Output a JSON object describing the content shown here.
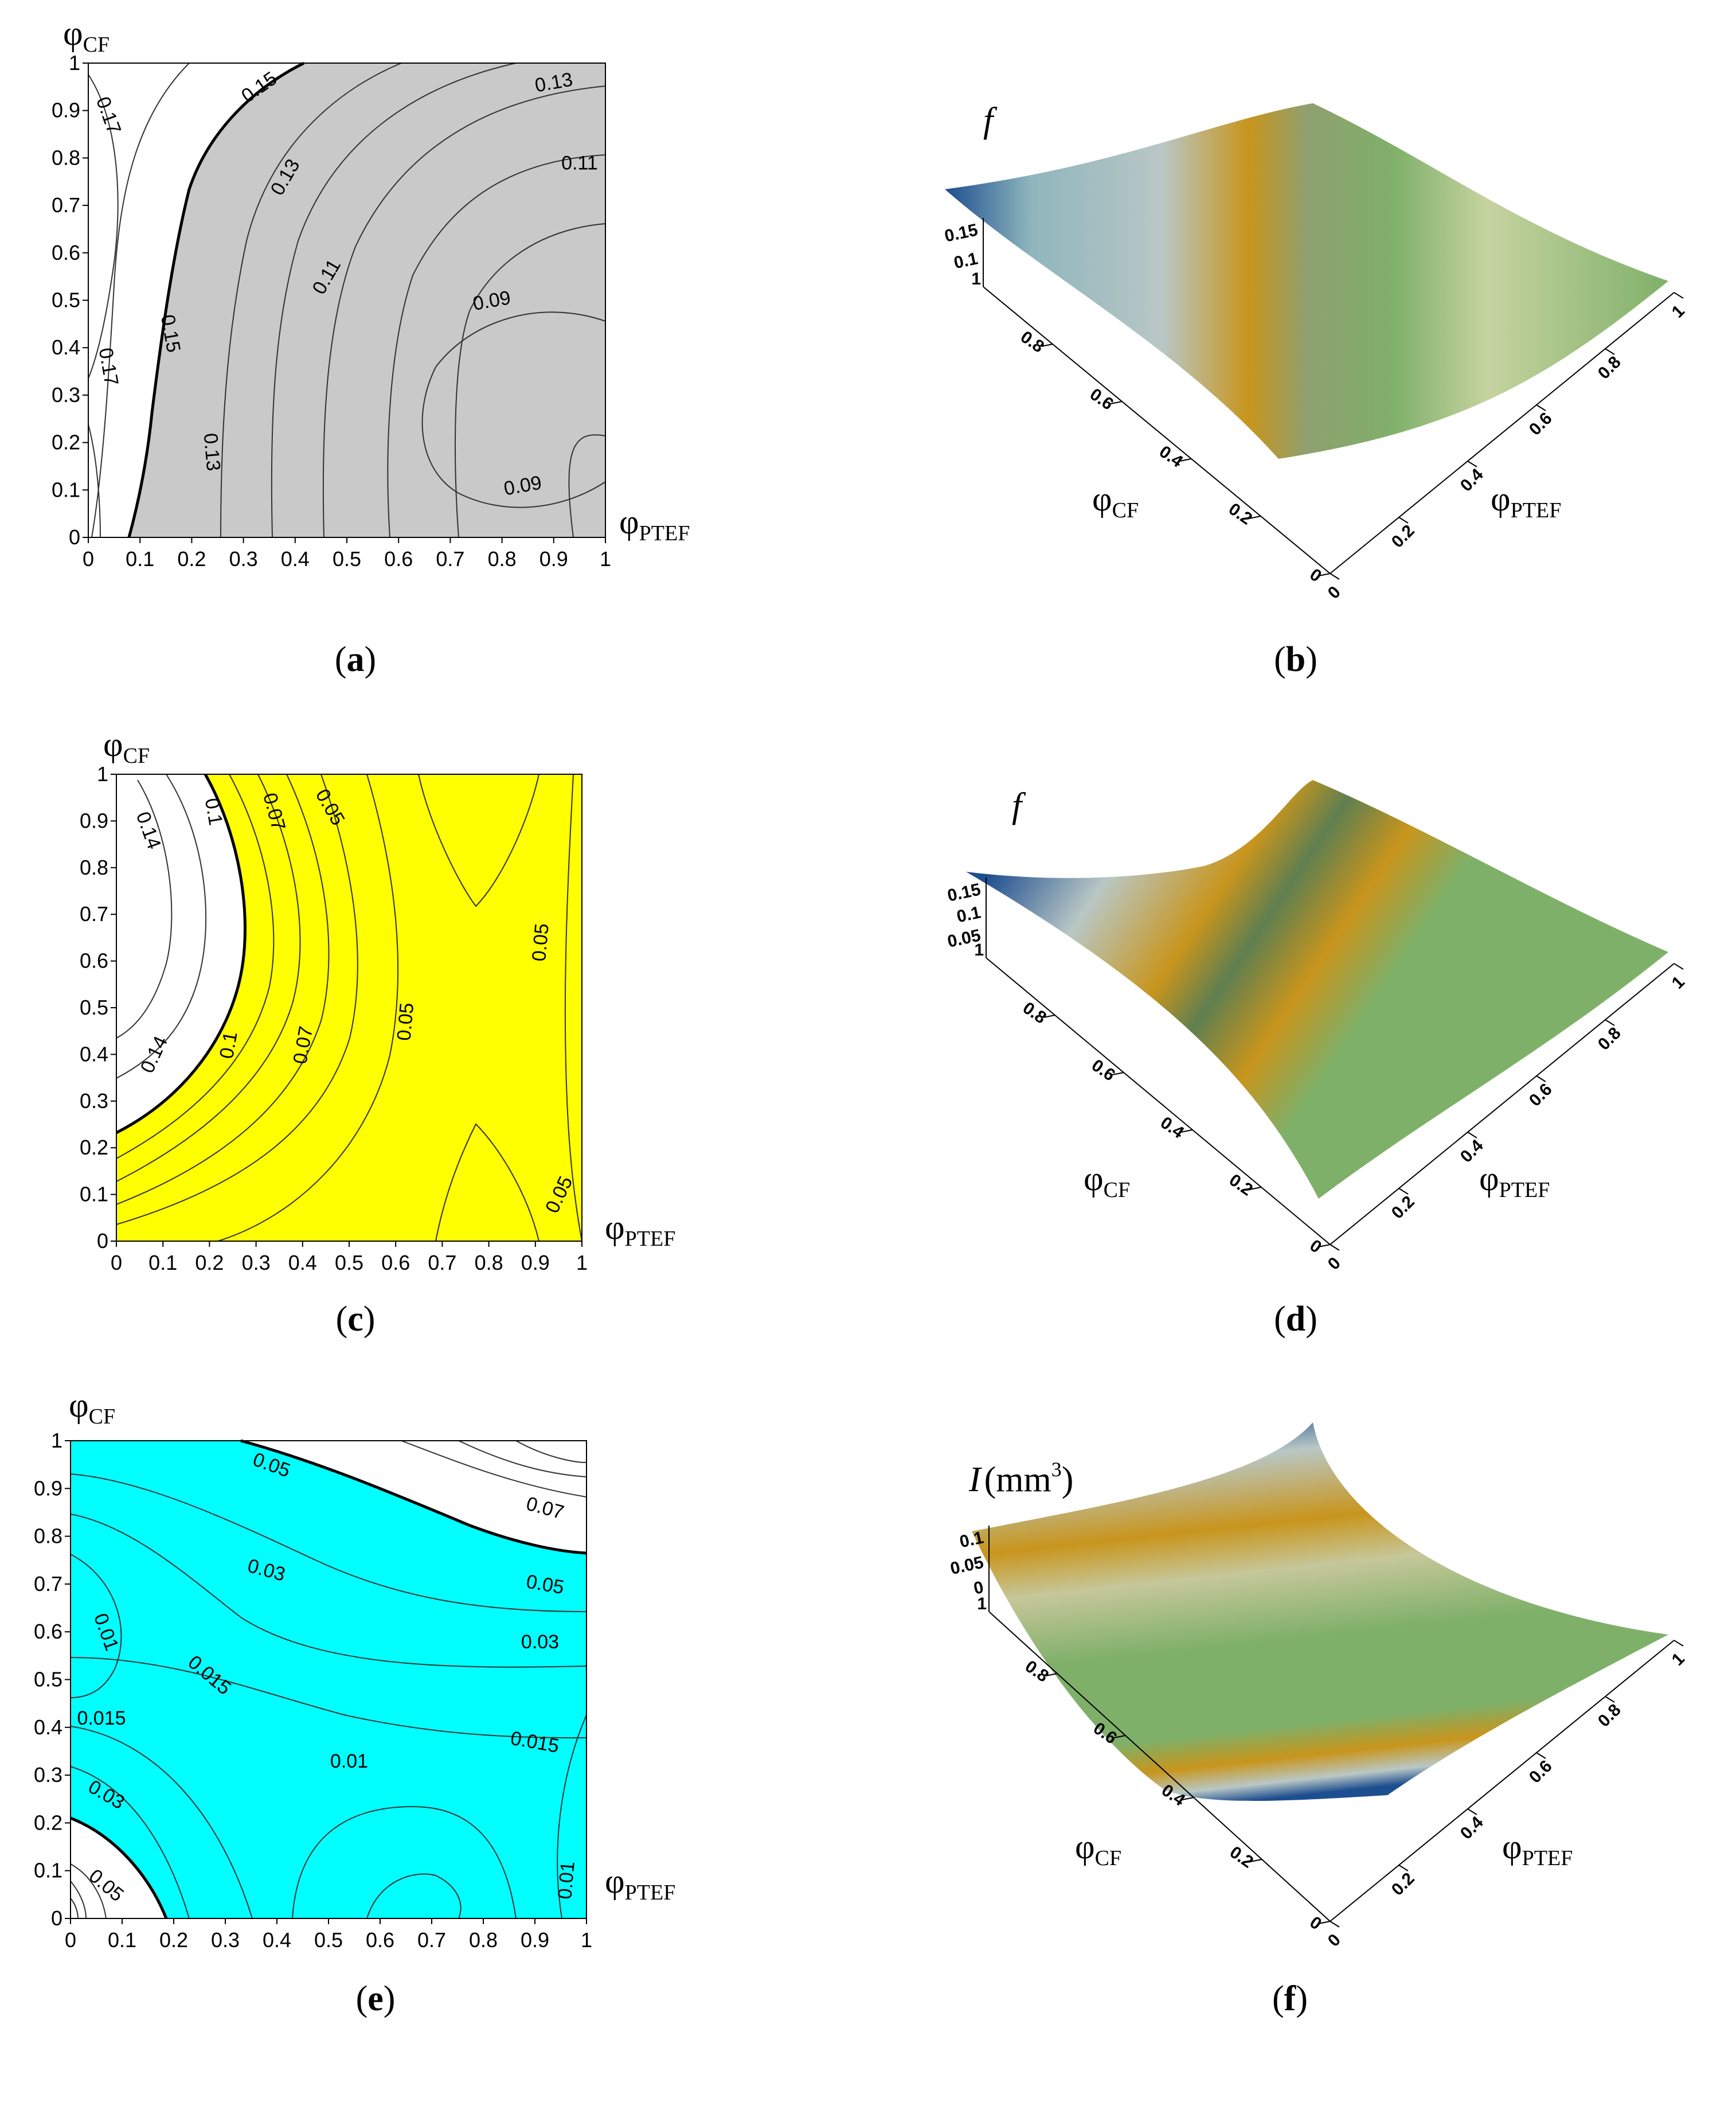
{
  "chart_data": [
    {
      "panel": "a",
      "type": "contour",
      "caption_label": "a",
      "xlabel": "φ",
      "xlabel_sub": "PTEF",
      "ylabel": "φ",
      "ylabel_sub": "CF",
      "xlim": [
        0,
        1
      ],
      "ylim": [
        0,
        1
      ],
      "xticks": [
        "0",
        "0.1",
        "0.2",
        "0.3",
        "0.4",
        "0.5",
        "0.6",
        "0.7",
        "0.8",
        "0.9",
        "1"
      ],
      "yticks": [
        "0",
        "0.1",
        "0.2",
        "0.3",
        "0.4",
        "0.5",
        "0.6",
        "0.7",
        "0.8",
        "0.9",
        "1"
      ],
      "fill_color": "#c9c9c9",
      "contour_labels": [
        {
          "text": "0.17",
          "x": 0.04,
          "y": 0.89,
          "rot": 70
        },
        {
          "text": "0.15",
          "x": 0.33,
          "y": 0.95,
          "rot": -35
        },
        {
          "text": "0.13",
          "x": 0.9,
          "y": 0.96,
          "rot": -10
        },
        {
          "text": "0.11",
          "x": 0.95,
          "y": 0.79,
          "rot": 0
        },
        {
          "text": "0.13",
          "x": 0.38,
          "y": 0.76,
          "rot": -60
        },
        {
          "text": "0.11",
          "x": 0.46,
          "y": 0.55,
          "rot": -60
        },
        {
          "text": "0.09",
          "x": 0.78,
          "y": 0.5,
          "rot": -10
        },
        {
          "text": "0.17",
          "x": 0.04,
          "y": 0.36,
          "rot": 80
        },
        {
          "text": "0.15",
          "x": 0.16,
          "y": 0.43,
          "rot": 80
        },
        {
          "text": "0.13",
          "x": 0.24,
          "y": 0.18,
          "rot": 85
        },
        {
          "text": "0.09",
          "x": 0.84,
          "y": 0.11,
          "rot": -10
        }
      ]
    },
    {
      "panel": "b",
      "type": "surface3d",
      "caption_label": "b",
      "zlabel": "f",
      "xlabel": "φ",
      "xlabel_sub": "PTEF",
      "ylabel": "φ",
      "ylabel_sub": "CF",
      "zticks": [
        "0.15",
        "0.1"
      ],
      "yticks": [
        "0.8",
        "0.6",
        "0.4",
        "0.2",
        "0"
      ],
      "xticks": [
        "0",
        "0.2",
        "0.4",
        "0.6",
        "0.8",
        "1"
      ],
      "corner_y_tick": "1"
    },
    {
      "panel": "c",
      "type": "contour",
      "caption_label": "c",
      "xlabel": "φ",
      "xlabel_sub": "PTEF",
      "ylabel": "φ",
      "ylabel_sub": "CF",
      "xlim": [
        0,
        1
      ],
      "ylim": [
        0,
        1
      ],
      "xticks": [
        "0",
        "0.1",
        "0.2",
        "0.3",
        "0.4",
        "0.5",
        "0.6",
        "0.7",
        "0.8",
        "0.9",
        "1"
      ],
      "yticks": [
        "0",
        "0.1",
        "0.2",
        "0.3",
        "0.4",
        "0.5",
        "0.6",
        "0.7",
        "0.8",
        "0.9",
        "1"
      ],
      "fill_color": "#ffff00",
      "contour_labels": [
        {
          "text": "0.14",
          "x": 0.07,
          "y": 0.88,
          "rot": 70
        },
        {
          "text": "0.1",
          "x": 0.21,
          "y": 0.92,
          "rot": 80
        },
        {
          "text": "0.07",
          "x": 0.34,
          "y": 0.92,
          "rot": 75
        },
        {
          "text": "0.05",
          "x": 0.46,
          "y": 0.93,
          "rot": 60
        },
        {
          "text": "0.05",
          "x": 0.91,
          "y": 0.64,
          "rot": -85
        },
        {
          "text": "0.14",
          "x": 0.08,
          "y": 0.4,
          "rot": -65
        },
        {
          "text": "0.1",
          "x": 0.24,
          "y": 0.42,
          "rot": -80
        },
        {
          "text": "0.07",
          "x": 0.4,
          "y": 0.42,
          "rot": -80
        },
        {
          "text": "0.05",
          "x": 0.62,
          "y": 0.47,
          "rot": -85
        },
        {
          "text": "0.05",
          "x": 0.95,
          "y": 0.1,
          "rot": -65
        }
      ]
    },
    {
      "panel": "d",
      "type": "surface3d",
      "caption_label": "d",
      "zlabel": "f",
      "xlabel": "φ",
      "xlabel_sub": "PTEF",
      "ylabel": "φ",
      "ylabel_sub": "CF",
      "zticks": [
        "0.15",
        "0.1",
        "0.05"
      ],
      "yticks": [
        "0.8",
        "0.6",
        "0.4",
        "0.2",
        "0"
      ],
      "xticks": [
        "0",
        "0.2",
        "0.4",
        "0.6",
        "0.8",
        "1"
      ],
      "corner_y_tick": "1"
    },
    {
      "panel": "e",
      "type": "contour",
      "caption_label": "e",
      "xlabel": "φ",
      "xlabel_sub": "PTEF",
      "ylabel": "φ",
      "ylabel_sub": "CF",
      "xlim": [
        0,
        1
      ],
      "ylim": [
        0,
        1
      ],
      "xticks": [
        "0",
        "0.1",
        "0.2",
        "0.3",
        "0.4",
        "0.5",
        "0.6",
        "0.7",
        "0.8",
        "0.9",
        "1"
      ],
      "yticks": [
        "0",
        "0.1",
        "0.2",
        "0.3",
        "0.4",
        "0.5",
        "0.6",
        "0.7",
        "0.8",
        "0.9",
        "1"
      ],
      "fill_color": "#00ffff",
      "contour_labels": [
        {
          "text": "0.05",
          "x": 0.39,
          "y": 0.95,
          "rot": 20
        },
        {
          "text": "0.07",
          "x": 0.92,
          "y": 0.86,
          "rot": 15
        },
        {
          "text": "0.03",
          "x": 0.38,
          "y": 0.73,
          "rot": 15
        },
        {
          "text": "0.05",
          "x": 0.92,
          "y": 0.7,
          "rot": 10
        },
        {
          "text": "0.01",
          "x": 0.07,
          "y": 0.6,
          "rot": 70
        },
        {
          "text": "0.03",
          "x": 0.91,
          "y": 0.58,
          "rot": 0
        },
        {
          "text": "0.015",
          "x": 0.27,
          "y": 0.51,
          "rot": 40
        },
        {
          "text": "0.015",
          "x": 0.06,
          "y": 0.42,
          "rot": 0
        },
        {
          "text": "0.015",
          "x": 0.9,
          "y": 0.37,
          "rot": 10
        },
        {
          "text": "0.01",
          "x": 0.54,
          "y": 0.33,
          "rot": 0
        },
        {
          "text": "0.03",
          "x": 0.07,
          "y": 0.26,
          "rot": 30
        },
        {
          "text": "0.05",
          "x": 0.07,
          "y": 0.07,
          "rot": 40
        },
        {
          "text": "0.01",
          "x": 0.96,
          "y": 0.08,
          "rot": -85
        }
      ]
    },
    {
      "panel": "f",
      "type": "surface3d",
      "caption_label": "f",
      "zlabel": "I",
      "zlabel_unit": "(mm",
      "zlabel_sup": "3",
      "zlabel_close": ")",
      "xlabel": "φ",
      "xlabel_sub": "PTEF",
      "ylabel": "φ",
      "ylabel_sub": "CF",
      "zticks": [
        "0.1",
        "0.05",
        "0"
      ],
      "yticks": [
        "0.8",
        "0.6",
        "0.4",
        "0.2",
        "0"
      ],
      "xticks": [
        "0",
        "0.2",
        "0.4",
        "0.6",
        "0.8",
        "1"
      ],
      "corner_y_tick": "1"
    }
  ],
  "colors": {
    "surface_green": "#7fb069",
    "surface_orange": "#c8951c",
    "surface_blue": "#1d4e8f",
    "surface_grey": "#b9c7c5"
  }
}
